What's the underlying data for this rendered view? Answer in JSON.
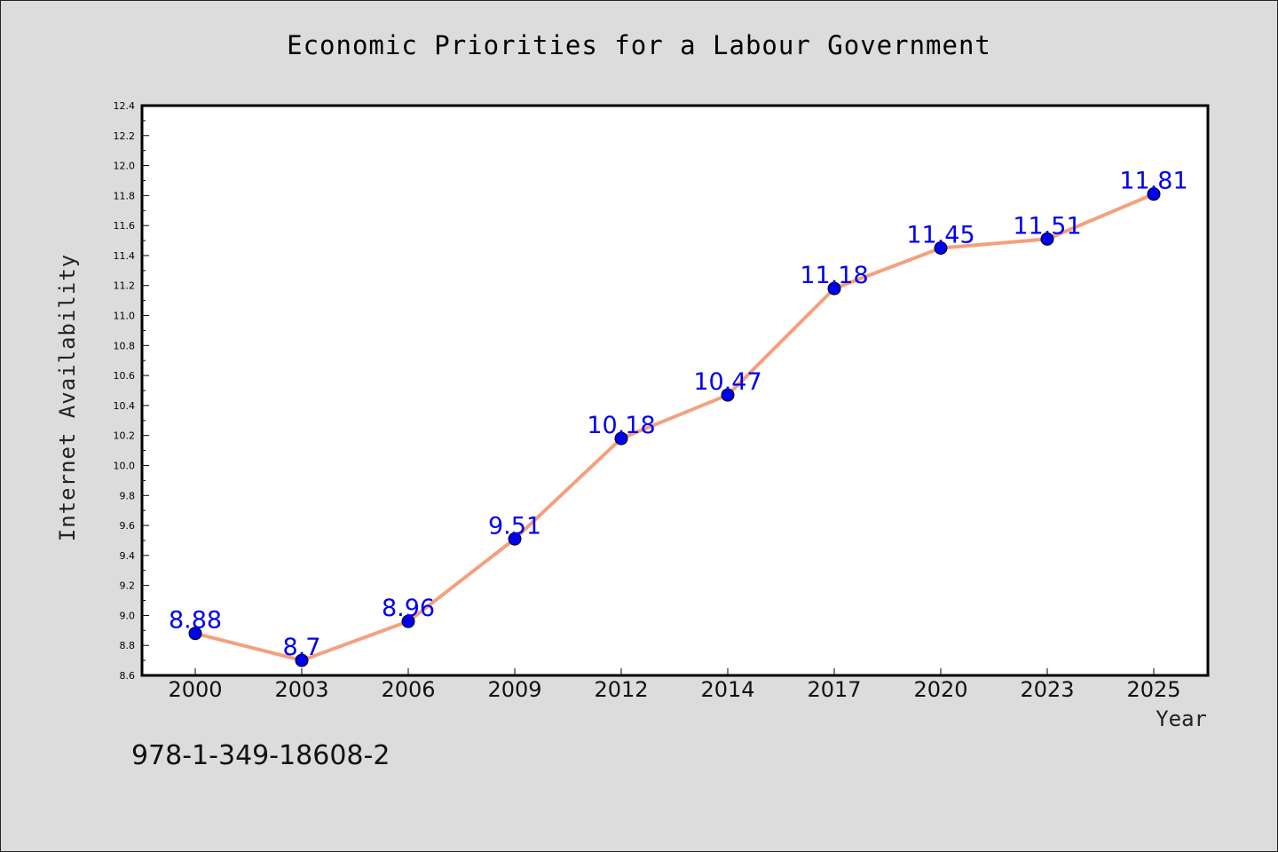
{
  "chart_data": {
    "type": "line",
    "title": "Economic Priorities for a Labour Government",
    "xlabel": "Year",
    "ylabel": "Internet Availability",
    "categories": [
      "2000",
      "2003",
      "2006",
      "2009",
      "2012",
      "2014",
      "2017",
      "2020",
      "2023",
      "2025"
    ],
    "values": [
      8.88,
      8.7,
      8.96,
      9.51,
      10.18,
      10.47,
      11.18,
      11.45,
      11.51,
      11.81
    ],
    "data_labels": [
      "8.88",
      "8.7",
      "8.96",
      "9.51",
      "10.18",
      "10.47",
      "11.18",
      "11.45",
      "11.51",
      "11.81"
    ],
    "ylim": [
      8.6,
      12.4
    ],
    "yticks": [
      "8.6",
      "8.8",
      "9.0",
      "9.2",
      "9.4",
      "9.6",
      "9.8",
      "10.0",
      "10.2",
      "10.4",
      "10.6",
      "10.8",
      "11.0",
      "11.2",
      "11.4",
      "11.6",
      "11.8",
      "12.0",
      "12.2",
      "12.4"
    ],
    "grid": false,
    "line_color": "#f4a07e",
    "marker_color": "#0000ee",
    "label_color": "#0000ee"
  },
  "footnote": "978-1-349-18608-2"
}
